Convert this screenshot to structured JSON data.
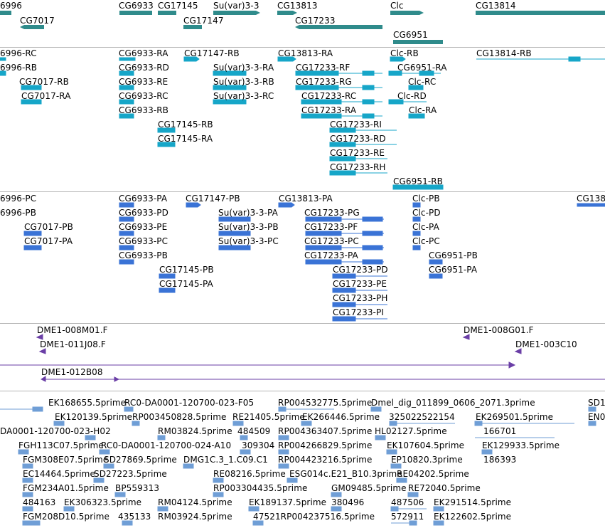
{
  "colors": {
    "gene": "#2f8b8b",
    "transcript": "#16a6c8",
    "protein": "#3a73d6",
    "clone": "#6a3ea6",
    "est": "#6f9ed6",
    "separator": "#b4b4b4"
  },
  "tracks": {
    "genes": {
      "labels": [
        "6996",
        "CG6933",
        "CG17145",
        "Su(var)3-3",
        "CG13813",
        "Clc",
        "CG13814",
        "CG7017",
        "CG17147",
        "CG17233",
        "CG6951"
      ]
    },
    "transcripts": {
      "labels": [
        "6996-RC",
        "CG6933-RA",
        "CG17147-RB",
        "CG13813-RA",
        "Clc-RB",
        "CG13814-RB",
        "6996-RB",
        "CG6933-RD",
        "Su(var)3-3-RA",
        "CG17233-RF",
        "CG6951-RA",
        "CG7017-RB",
        "CG6933-RE",
        "Su(var)3-3-RB",
        "CG17233-RG",
        "Clc-RC",
        "CG7017-RA",
        "CG6933-RC",
        "Su(var)3-3-RC",
        "CG17233-RC",
        "Clc-RD",
        "CG6933-RB",
        "CG17233-RA",
        "Clc-RA",
        "CG17145-RB",
        "CG17233-RI",
        "CG17145-RA",
        "CG17233-RD",
        "CG17233-RE",
        "CG17233-RH",
        "CG6951-RB"
      ]
    },
    "proteins": {
      "labels": [
        "6996-PC",
        "CG6933-PA",
        "CG17147-PB",
        "CG13813-PA",
        "Clc-PB",
        "CG138",
        "6996-PB",
        "CG6933-PD",
        "Su(var)3-3-PA",
        "CG17233-PG",
        "Clc-PD",
        "CG7017-PB",
        "CG6933-PE",
        "Su(var)3-3-PB",
        "CG17233-PF",
        "Clc-PA",
        "CG7017-PA",
        "CG6933-PC",
        "Su(var)3-3-PC",
        "CG17233-PC",
        "Clc-PC",
        "CG6933-PB",
        "CG17233-PA",
        "CG6951-PB",
        "CG17145-PB",
        "CG17233-PD",
        "CG6951-PA",
        "CG17145-PA",
        "CG17233-PE",
        "CG17233-PH",
        "CG17233-PI"
      ]
    },
    "clones": {
      "labels": [
        "DME1-008M01.F",
        "DME1-008G01.F",
        "DME1-011J08.F",
        "DME1-003C10",
        "DME1-012B08"
      ]
    },
    "ests": {
      "labels": [
        "EK168655.5prime",
        "RC0-DA0001-120700-023-F05",
        "RP004532775.5prime",
        "Dmel_dig_011899_0606_2071.3prime",
        "SD1",
        "EK120139.5prime",
        "RP003450828.5prime",
        "RE21405.5prime",
        "EK266446.5prime",
        "325022522154",
        "EK269501.5prime",
        "EN0",
        "DA0001-120700-023-H02",
        "RM03824.5prime",
        "484509",
        "RP004363407.5prime",
        "HL02127.5prime",
        "166701",
        "FGH113C07.5prime",
        "RC0-DA0001-120700-024-A10",
        "309304",
        "RP004266829.5prime",
        "EK107604.5prime",
        "EK129933.5prime",
        "FGM308E07.5prime",
        "SD27869.5prime",
        "DMG1C.3_1.C09.C1",
        "RP004423216.5prime",
        "EP10820.3prime",
        "186393",
        "EC14464.5prime",
        "SD27223.5prime",
        "RE08216.5prime",
        "ESG014c.E21_B10.3prime",
        "RE04202.5prime",
        "FGM234A01.5prime",
        "BP559313",
        "RP003304435.5prime",
        "GM09485.5prime",
        "RE72040.5prime",
        "484163",
        "EK306323.5prime",
        "RM04124.5prime",
        "EK189137.5prime",
        "380496",
        "487506",
        "EK291514.5prime",
        "FGM208D10.5prime",
        "435133",
        "RM03924.5prime",
        "47521RP004237516.5prime",
        "572911",
        "EK122602.5prime"
      ]
    }
  }
}
